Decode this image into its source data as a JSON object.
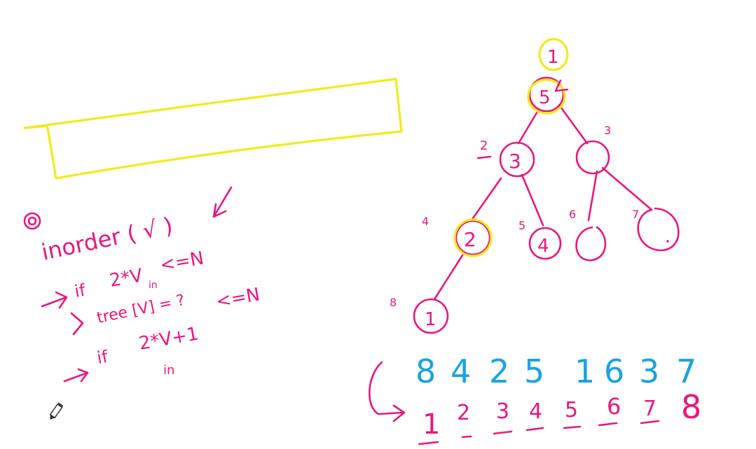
{
  "colors": {
    "pink": "#e8177f",
    "yellow": "#f2ea1a",
    "blue": "#1aa3e0",
    "pencil": "#333333"
  },
  "notes": {
    "bullet": "①",
    "inorder": "inorder ( √ )",
    "line1_if": "if",
    "line1_expr": "2*V",
    "line1_cmp": "<=N",
    "line1_in": "in",
    "line2_expr": "tree [V] = ?",
    "line3_if": "if",
    "line3_expr": "2*V+1",
    "line3_cmp": "<=N",
    "line3_in": "in"
  },
  "tree": {
    "root_marker": "1",
    "nodes": [
      {
        "index": "1",
        "value": "5"
      },
      {
        "index": "2",
        "value": "3"
      },
      {
        "index": "3",
        "value": ""
      },
      {
        "index": "4",
        "value": "2"
      },
      {
        "index": "5",
        "value": "4"
      },
      {
        "index": "6",
        "value": ""
      },
      {
        "index": "7",
        "value": ""
      },
      {
        "index": "8",
        "value": "1"
      }
    ]
  },
  "sequence_top": [
    "8",
    "4",
    "2",
    "5",
    "1",
    "6",
    "3",
    "7"
  ],
  "sequence_bottom": [
    "1",
    "2",
    "3",
    "4",
    "5",
    "6",
    "7",
    "8"
  ],
  "tools": {
    "pencil": "pencil-icon"
  }
}
